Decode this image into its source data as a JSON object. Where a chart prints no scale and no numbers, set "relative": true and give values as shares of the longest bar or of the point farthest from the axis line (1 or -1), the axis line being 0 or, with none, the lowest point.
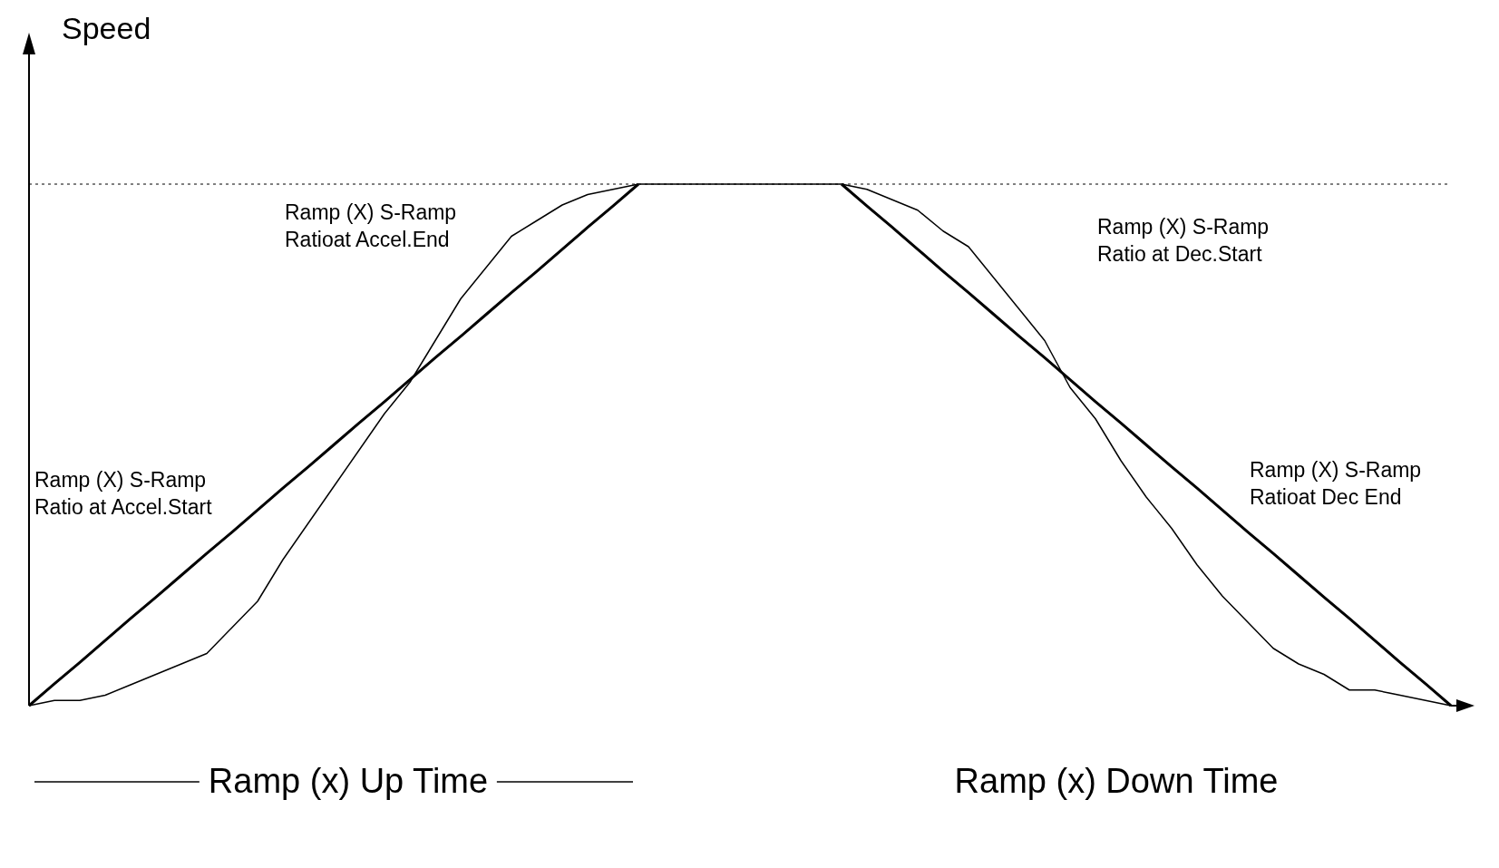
{
  "chart_data": {
    "type": "line",
    "relative": true,
    "ylabel": "Speed",
    "marker": "none",
    "line_style": "solid",
    "categories": [
      null,
      null,
      null,
      null,
      null,
      null,
      null,
      null,
      null,
      null,
      null,
      null,
      null,
      null,
      null,
      null,
      null,
      null,
      null,
      null,
      null,
      null,
      null,
      null,
      null,
      null,
      null,
      null,
      null,
      null,
      null,
      null,
      null,
      null,
      null,
      null,
      null,
      null,
      null,
      null,
      null,
      null,
      null,
      null,
      null,
      null,
      null,
      null,
      null,
      null,
      null,
      null,
      null,
      null,
      null,
      null,
      null
    ],
    "series": [
      {
        "color": "#000000",
        "values": [
          0,
          0.042,
          0.083,
          0.125,
          0.167,
          0.208,
          0.25,
          0.292,
          0.333,
          0.375,
          0.417,
          0.458,
          0.5,
          0.542,
          0.583,
          0.625,
          0.667,
          0.708,
          0.75,
          0.792,
          0.833,
          0.875,
          0.917,
          0.958,
          1,
          null,
          null,
          null,
          null,
          null,
          null,
          null,
          1,
          0.958,
          0.917,
          0.875,
          0.833,
          0.792,
          0.75,
          0.708,
          0.667,
          0.625,
          0.583,
          0.542,
          0.5,
          0.458,
          0.417,
          0.375,
          0.333,
          0.292,
          0.25,
          0.208,
          0.167,
          0.125,
          0.083,
          0.042,
          0
        ]
      },
      {
        "color": "#000000",
        "values": [
          0,
          0.01,
          0.01,
          0.02,
          0.04,
          0.06,
          0.08,
          0.1,
          0.15,
          0.2,
          0.28,
          0.35,
          0.42,
          0.49,
          0.56,
          0.62,
          0.7,
          0.78,
          0.84,
          0.9,
          0.93,
          0.96,
          0.98,
          0.99,
          1,
          1,
          1,
          1,
          1,
          1,
          1,
          1,
          1,
          0.99,
          0.97,
          0.95,
          0.91,
          0.88,
          0.82,
          0.76,
          0.7,
          0.61,
          0.55,
          0.47,
          0.4,
          0.34,
          0.27,
          0.21,
          0.16,
          0.11,
          0.08,
          0.06,
          0.03,
          0.03,
          0.02,
          0.01,
          0
        ]
      }
    ],
    "ref_lines": [
      {
        "axis": "y",
        "value": 1,
        "line_style": "dotted"
      }
    ],
    "annotations": [
      "Ramp (X) S-Ramp\nRatio at Accel.Start",
      "Ramp (X) S-Ramp\nRatioat Accel.End",
      "Ramp (X) S-Ramp\nRatio at Dec.Start",
      "Ramp (X) S-Ramp\nRatioat Dec End",
      "Ramp (x) Up Time",
      "Ramp (x) Down Time"
    ]
  }
}
